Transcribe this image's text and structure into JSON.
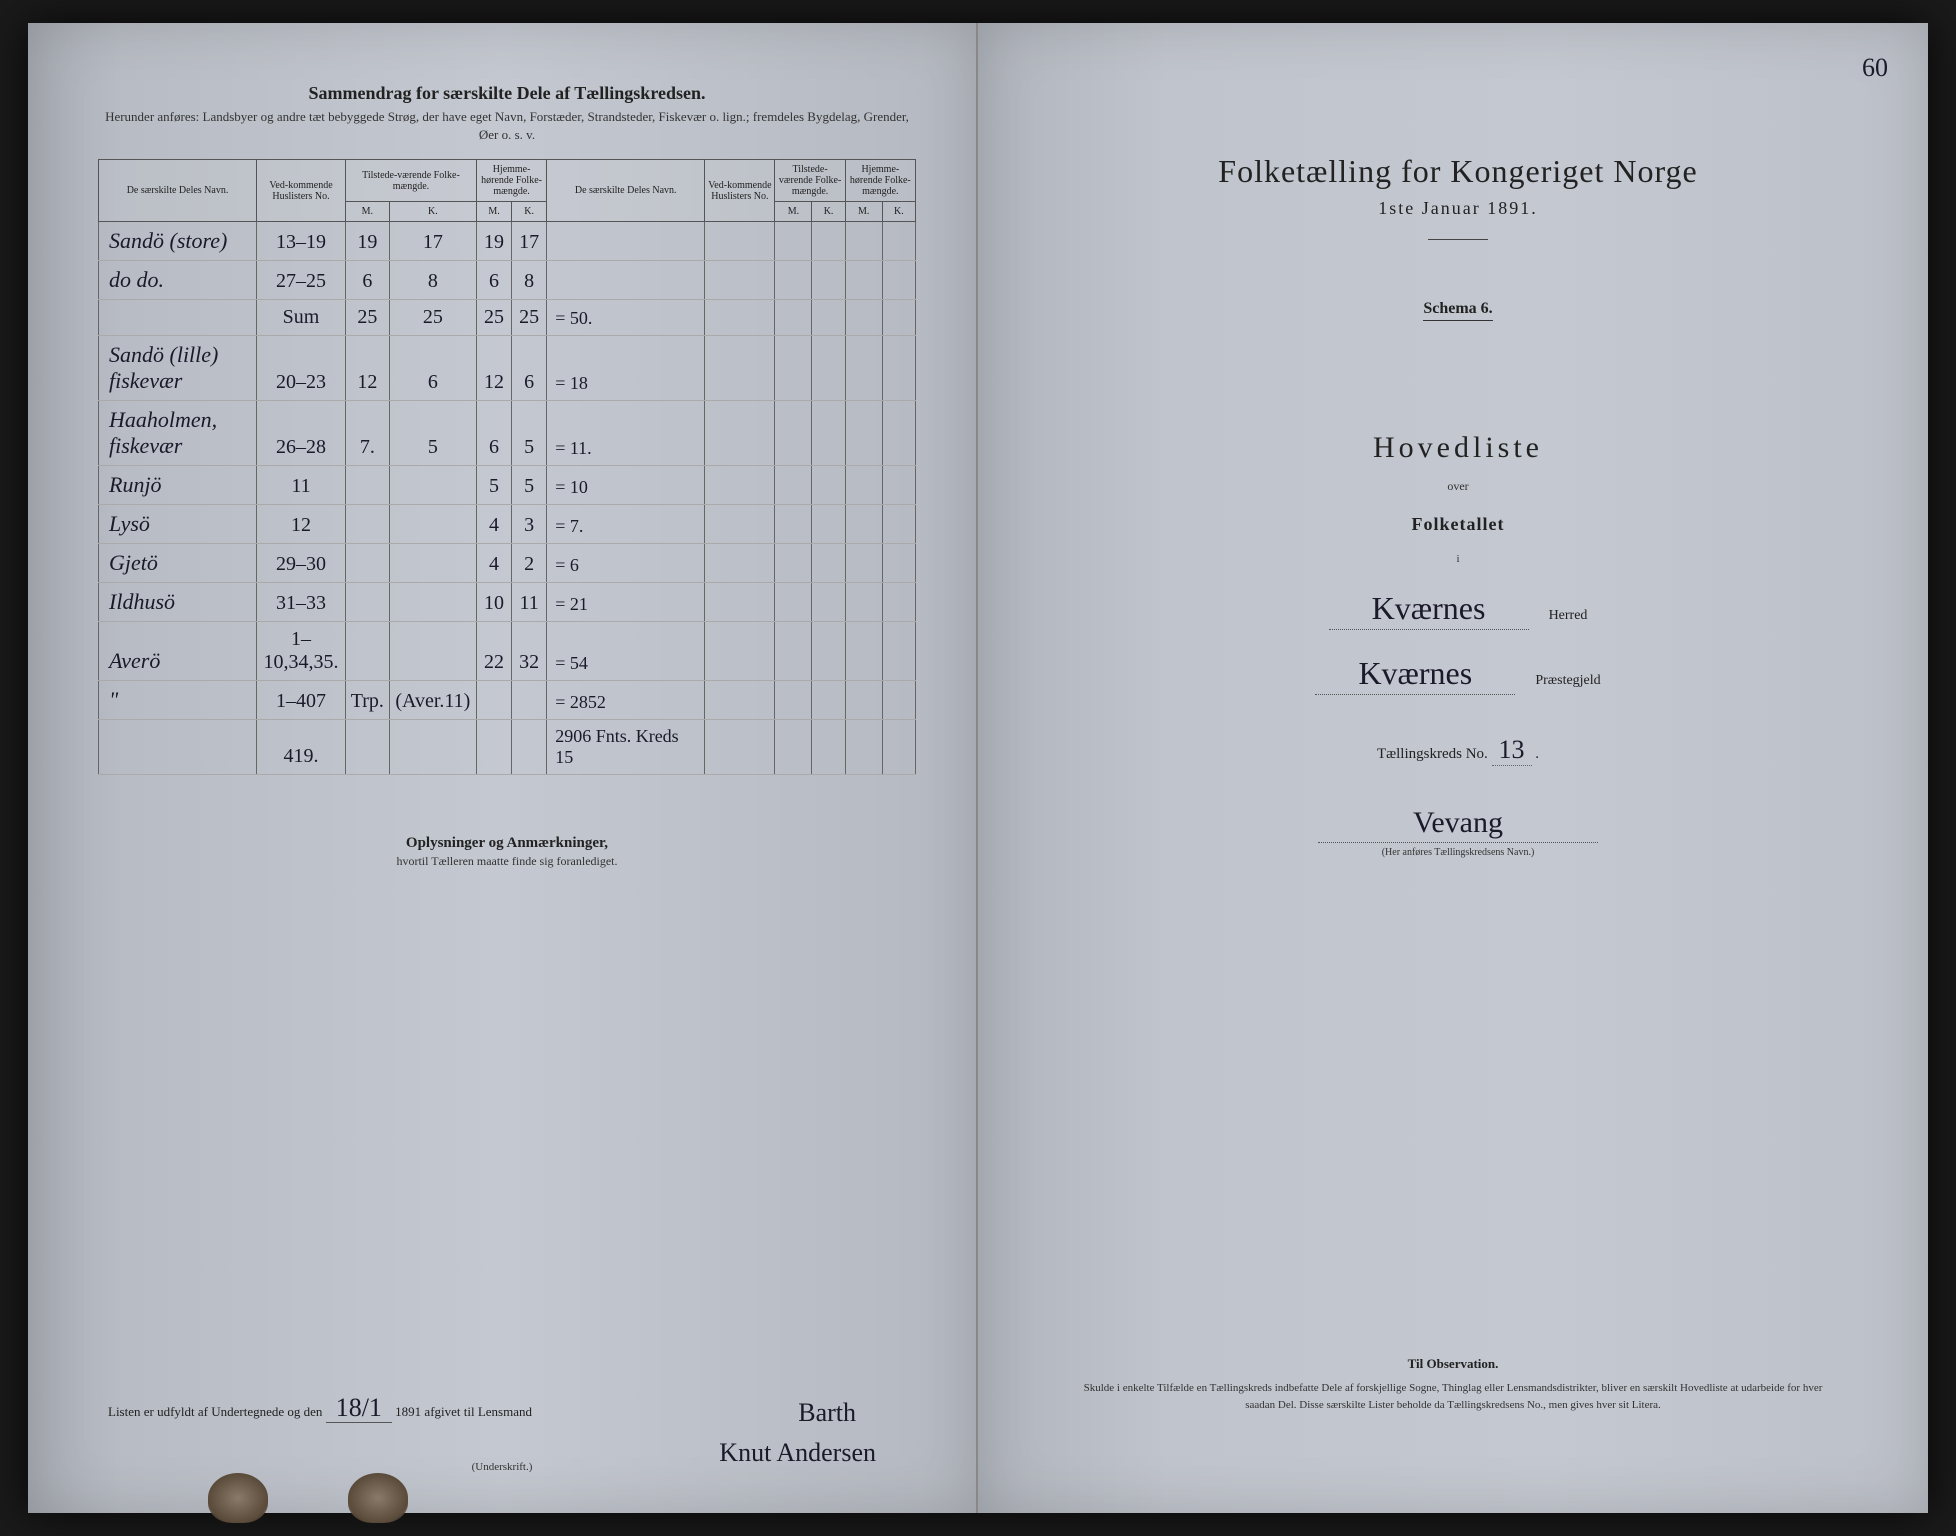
{
  "left": {
    "header_title": "Sammendrag for særskilte Dele af Tællingskredsen.",
    "header_sub": "Herunder anføres: Landsbyer og andre tæt bebyggede Strøg, der have eget Navn, Forstæder, Strandsteder, Fiskevær o. lign.; fremdeles Bygdelag, Grender, Øer o. s. v.",
    "col_name": "De særskilte Deles Navn.",
    "col_husliste": "Ved-kommende Huslisters No.",
    "col_tilstede": "Tilstede-værende Folke-mængde.",
    "col_hjemme": "Hjemme-hørende Folke-mængde.",
    "col_m": "M.",
    "col_k": "K.",
    "rows": [
      {
        "name": "Sandö (store)",
        "hus": "13–19",
        "tm": "19",
        "tk": "17",
        "hm": "19",
        "hk": "17",
        "note": ""
      },
      {
        "name": "do    do.",
        "hus": "27–25",
        "tm": "6",
        "tk": "8",
        "hm": "6",
        "hk": "8",
        "note": ""
      },
      {
        "name": "",
        "hus": "Sum",
        "tm": "25",
        "tk": "25",
        "hm": "25",
        "hk": "25",
        "note": "= 50."
      },
      {
        "name": "Sandö (lille) fiskevær",
        "hus": "20–23",
        "tm": "12",
        "tk": "6",
        "hm": "12",
        "hk": "6",
        "note": "= 18"
      },
      {
        "name": "Haaholmen, fiskevær",
        "hus": "26–28",
        "tm": "7.",
        "tk": "5",
        "hm": "6",
        "hk": "5",
        "note": "= 11."
      },
      {
        "name": "Runjö",
        "hus": "11",
        "tm": "",
        "tk": "",
        "hm": "5",
        "hk": "5",
        "note": "= 10"
      },
      {
        "name": "Lysö",
        "hus": "12",
        "tm": "",
        "tk": "",
        "hm": "4",
        "hk": "3",
        "note": "= 7."
      },
      {
        "name": "Gjetö",
        "hus": "29–30",
        "tm": "",
        "tk": "",
        "hm": "4",
        "hk": "2",
        "note": "= 6"
      },
      {
        "name": "Ildhusö",
        "hus": "31–33",
        "tm": "",
        "tk": "",
        "hm": "10",
        "hk": "11",
        "note": "= 21"
      },
      {
        "name": "Averö",
        "hus": "1–10,34,35.",
        "tm": "",
        "tk": "",
        "hm": "22",
        "hk": "32",
        "note": "= 54"
      },
      {
        "name": "\"",
        "hus": "1–407",
        "tm": "Trp.",
        "tk": "(Aver.11)",
        "hm": "",
        "hk": "",
        "note": "= 2852"
      },
      {
        "name": "",
        "hus": "419.",
        "tm": "",
        "tk": "",
        "hm": "",
        "hk": "",
        "note": "2906 Fnts. Kreds 15"
      }
    ],
    "remarks_title": "Oplysninger og Anmærkninger,",
    "remarks_sub": "hvortil Tælleren maatte finde sig foranlediget.",
    "sig_prefix": "Listen er udfyldt af Undertegnede og den",
    "sig_date": "18/1",
    "sig_mid": "1891 afgivet til Lensmand",
    "sig_name": "Barth",
    "sig_name2": "Knut Andersen",
    "sig_caption": "(Underskrift.)"
  },
  "right": {
    "corner": "60",
    "title": "Folketælling for Kongeriget Norge",
    "date": "1ste Januar 1891.",
    "schema": "Schema 6.",
    "hovedliste": "Hovedliste",
    "over": "over",
    "folketallet": "Folketallet",
    "i": "i",
    "herred_value": "Kværnes",
    "herred_label": "Herred",
    "praeste_value": "Kværnes",
    "praeste_label": "Præstegjeld",
    "kreds_label": "Tællingskreds No.",
    "kreds_no": "13",
    "kreds_name": "Vevang",
    "kreds_caption": "(Her anføres Tællingskredsens Navn.)",
    "obs_title": "Til Observation.",
    "obs_text": "Skulde i enkelte Tilfælde en Tællingskreds indbefatte Dele af forskjellige Sogne, Thinglag eller Lensmandsdistrikter, bliver en særskilt Hovedliste at udarbeide for hver saadan Del. Disse særskilte Lister beholde da Tællingskredsens No., men gives hver sit Litera."
  },
  "colors": {
    "paper": "#c4c8d0",
    "ink": "#1a1a2a",
    "print": "#222222",
    "border": "#555555"
  }
}
